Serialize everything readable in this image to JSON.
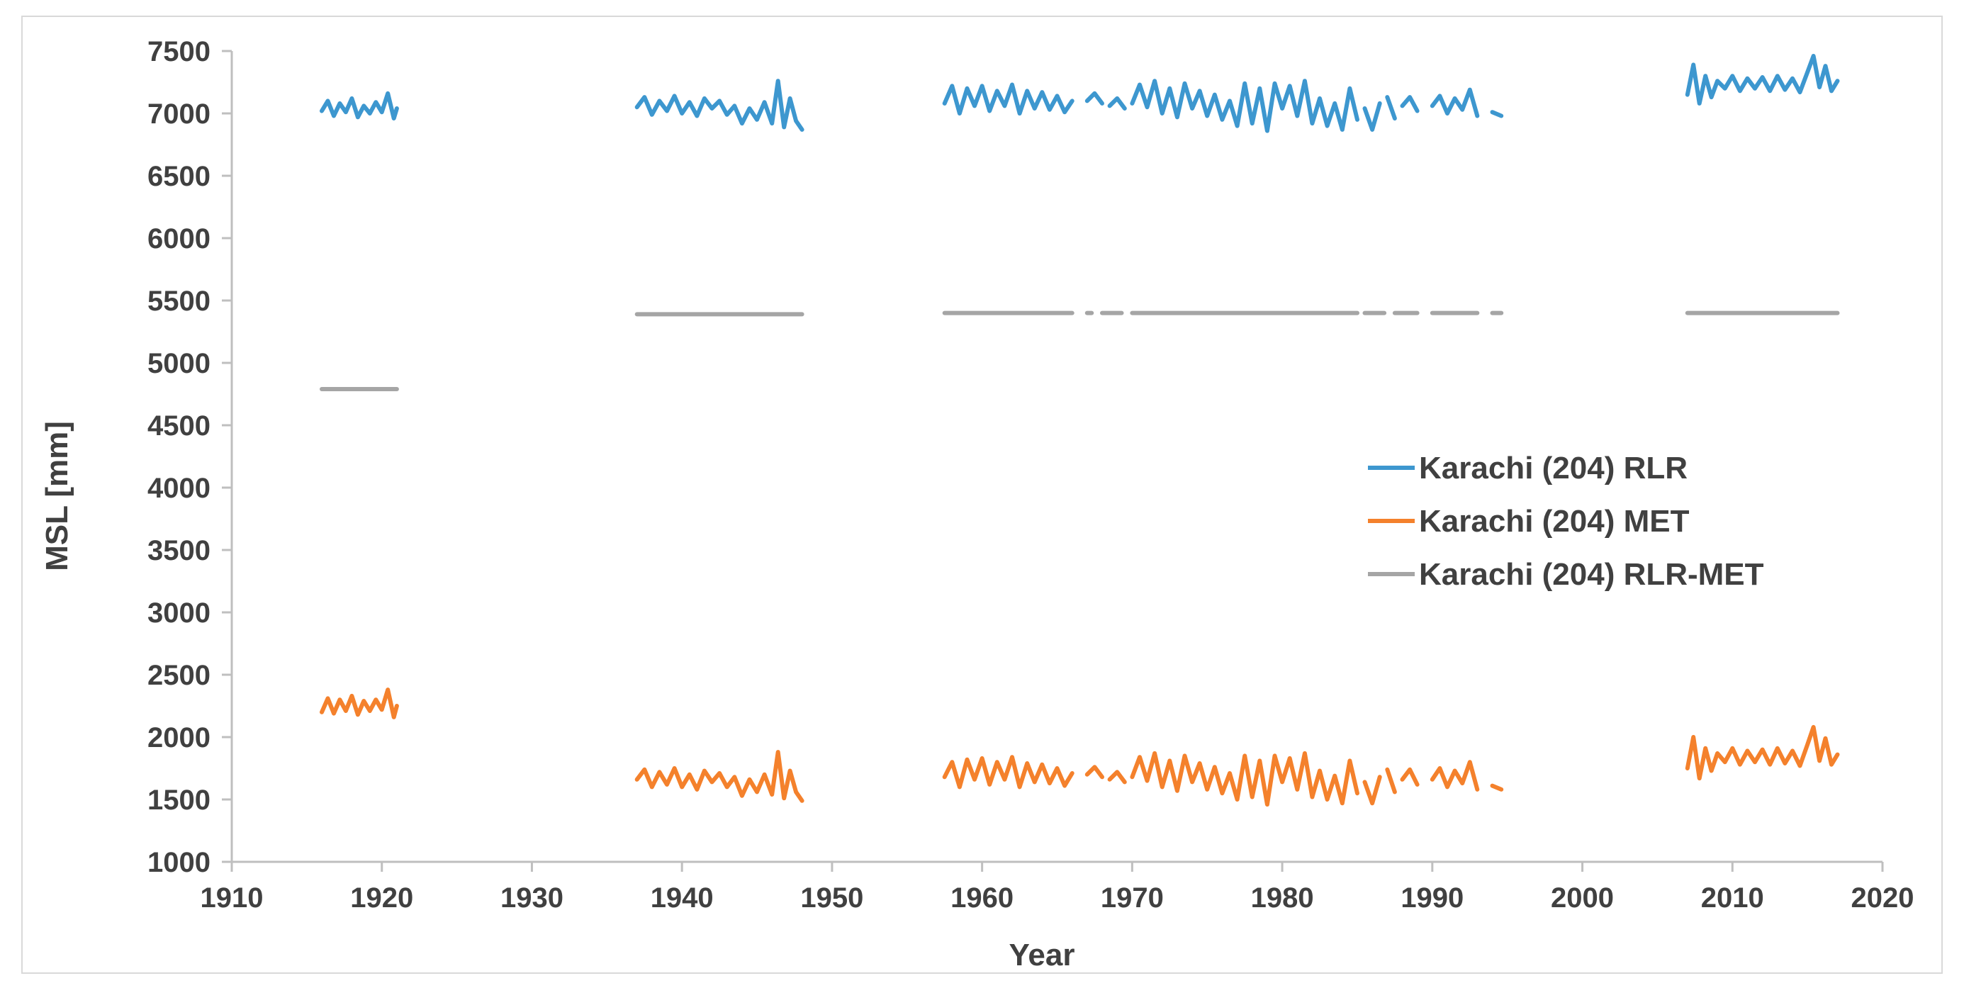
{
  "chart_data": {
    "type": "line",
    "xlabel": "Year",
    "ylabel": "MSL [mm]",
    "xlim": [
      1910,
      2020
    ],
    "ylim": [
      1000,
      7500
    ],
    "xticks": [
      1910,
      1920,
      1930,
      1940,
      1950,
      1960,
      1970,
      1980,
      1990,
      2000,
      2010,
      2020
    ],
    "yticks": [
      1000,
      1500,
      2000,
      2500,
      3000,
      3500,
      4000,
      4500,
      5000,
      5500,
      6000,
      6500,
      7000,
      7500
    ],
    "grid": false,
    "legend_position": "right",
    "series": [
      {
        "name": "Karachi (204) RLR",
        "color": "#3d97cf",
        "segments": [
          {
            "x": [
              1916.0,
              1916.4,
              1916.8,
              1917.2,
              1917.6,
              1918.0,
              1918.4,
              1918.8,
              1919.2,
              1919.6,
              1920.0,
              1920.4,
              1920.8,
              1921.0
            ],
            "y": [
              7020,
              7100,
              6980,
              7080,
              7010,
              7120,
              6970,
              7060,
              7000,
              7090,
              7010,
              7160,
              6960,
              7040
            ]
          },
          {
            "x": [
              1937.0,
              1937.5,
              1938.0,
              1938.5,
              1939.0,
              1939.5,
              1940.0,
              1940.5,
              1941.0,
              1941.5,
              1942.0,
              1942.5,
              1943.0,
              1943.5,
              1944.0,
              1944.5,
              1945.0,
              1945.5,
              1946.0,
              1946.4,
              1946.8,
              1947.2,
              1947.6,
              1948.0
            ],
            "y": [
              7050,
              7130,
              6990,
              7100,
              7020,
              7140,
              7000,
              7090,
              6980,
              7120,
              7040,
              7100,
              6990,
              7060,
              6920,
              7040,
              6950,
              7090,
              6920,
              7260,
              6890,
              7120,
              6940,
              6870
            ]
          },
          {
            "x": [
              1957.5,
              1958.0,
              1958.5,
              1959.0,
              1959.5,
              1960.0,
              1960.5,
              1961.0,
              1961.5,
              1962.0,
              1962.5,
              1963.0,
              1963.5,
              1964.0,
              1964.5,
              1965.0,
              1965.5,
              1966.0
            ],
            "y": [
              7080,
              7220,
              7000,
              7200,
              7060,
              7220,
              7020,
              7180,
              7060,
              7230,
              7000,
              7180,
              7040,
              7170,
              7030,
              7140,
              7010,
              7100
            ]
          },
          {
            "x": [
              1967.0,
              1967.5,
              1968.0
            ],
            "y": [
              7100,
              7160,
              7080
            ]
          },
          {
            "x": [
              1968.5,
              1969.0,
              1969.5
            ],
            "y": [
              7060,
              7120,
              7040
            ]
          },
          {
            "x": [
              1970.0,
              1970.5,
              1971.0,
              1971.5,
              1972.0,
              1972.5,
              1973.0,
              1973.5,
              1974.0,
              1974.5,
              1975.0,
              1975.5,
              1976.0,
              1976.5,
              1977.0,
              1977.5,
              1978.0,
              1978.5,
              1979.0,
              1979.5,
              1980.0,
              1980.5,
              1981.0,
              1981.5,
              1982.0,
              1982.5,
              1983.0,
              1983.5,
              1984.0,
              1984.5,
              1985.0
            ],
            "y": [
              7080,
              7230,
              7050,
              7260,
              7000,
              7200,
              6970,
              7240,
              7040,
              7180,
              6980,
              7150,
              6950,
              7100,
              6900,
              7240,
              6920,
              7200,
              6860,
              7240,
              7040,
              7220,
              6980,
              7260,
              6920,
              7120,
              6900,
              7080,
              6870,
              7200,
              6950
            ]
          },
          {
            "x": [
              1985.5,
              1986.0,
              1986.5
            ],
            "y": [
              7040,
              6870,
              7080
            ]
          },
          {
            "x": [
              1987.0,
              1987.5
            ],
            "y": [
              7130,
              6960
            ]
          },
          {
            "x": [
              1988.0,
              1988.5,
              1989.0
            ],
            "y": [
              7060,
              7130,
              7020
            ]
          },
          {
            "x": [
              1990.0,
              1990.5,
              1991.0,
              1991.5,
              1992.0,
              1992.5,
              1993.0
            ],
            "y": [
              7060,
              7140,
              7000,
              7120,
              7030,
              7190,
              6980
            ]
          },
          {
            "x": [
              1994.0,
              1994.6
            ],
            "y": [
              7010,
              6980
            ]
          },
          {
            "x": [
              2007.0,
              2007.4,
              2007.8,
              2008.2,
              2008.6,
              2009.0,
              2009.5,
              2010.0,
              2010.5,
              2011.0,
              2011.5,
              2012.0,
              2012.5,
              2013.0,
              2013.5,
              2014.0,
              2014.5,
              2015.0,
              2015.4,
              2015.8,
              2016.2,
              2016.6,
              2017.0
            ],
            "y": [
              7150,
              7390,
              7080,
              7300,
              7130,
              7260,
              7200,
              7300,
              7180,
              7280,
              7200,
              7290,
              7180,
              7300,
              7190,
              7280,
              7170,
              7330,
              7460,
              7210,
              7380,
              7180,
              7260
            ]
          }
        ]
      },
      {
        "name": "Karachi (204) MET",
        "color": "#f4812c",
        "segments": [
          {
            "x": [
              1916.0,
              1916.4,
              1916.8,
              1917.2,
              1917.6,
              1918.0,
              1918.4,
              1918.8,
              1919.2,
              1919.6,
              1920.0,
              1920.4,
              1920.8,
              1921.0
            ],
            "y": [
              2200,
              2310,
              2190,
              2300,
              2210,
              2330,
              2180,
              2290,
              2210,
              2300,
              2220,
              2380,
              2160,
              2250
            ]
          },
          {
            "x": [
              1937.0,
              1937.5,
              1938.0,
              1938.5,
              1939.0,
              1939.5,
              1940.0,
              1940.5,
              1941.0,
              1941.5,
              1942.0,
              1942.5,
              1943.0,
              1943.5,
              1944.0,
              1944.5,
              1945.0,
              1945.5,
              1946.0,
              1946.4,
              1946.8,
              1947.2,
              1947.6,
              1948.0
            ],
            "y": [
              1660,
              1740,
              1600,
              1720,
              1620,
              1750,
              1600,
              1700,
              1580,
              1730,
              1640,
              1710,
              1600,
              1680,
              1530,
              1660,
              1560,
              1700,
              1540,
              1880,
              1510,
              1730,
              1560,
              1490
            ]
          },
          {
            "x": [
              1957.5,
              1958.0,
              1958.5,
              1959.0,
              1959.5,
              1960.0,
              1960.5,
              1961.0,
              1961.5,
              1962.0,
              1962.5,
              1963.0,
              1963.5,
              1964.0,
              1964.5,
              1965.0,
              1965.5,
              1966.0
            ],
            "y": [
              1680,
              1800,
              1600,
              1820,
              1660,
              1830,
              1620,
              1800,
              1660,
              1840,
              1600,
              1790,
              1640,
              1780,
              1630,
              1750,
              1610,
              1710
            ]
          },
          {
            "x": [
              1967.0,
              1967.5,
              1968.0
            ],
            "y": [
              1700,
              1760,
              1680
            ]
          },
          {
            "x": [
              1968.5,
              1969.0,
              1969.5
            ],
            "y": [
              1660,
              1720,
              1640
            ]
          },
          {
            "x": [
              1970.0,
              1970.5,
              1971.0,
              1971.5,
              1972.0,
              1972.5,
              1973.0,
              1973.5,
              1974.0,
              1974.5,
              1975.0,
              1975.5,
              1976.0,
              1976.5,
              1977.0,
              1977.5,
              1978.0,
              1978.5,
              1979.0,
              1979.5,
              1980.0,
              1980.5,
              1981.0,
              1981.5,
              1982.0,
              1982.5,
              1983.0,
              1983.5,
              1984.0,
              1984.5,
              1985.0
            ],
            "y": [
              1680,
              1840,
              1650,
              1870,
              1600,
              1810,
              1570,
              1850,
              1640,
              1790,
              1580,
              1760,
              1550,
              1710,
              1500,
              1850,
              1520,
              1810,
              1460,
              1850,
              1640,
              1830,
              1580,
              1870,
              1520,
              1730,
              1500,
              1690,
              1470,
              1810,
              1550
            ]
          },
          {
            "x": [
              1985.5,
              1986.0,
              1986.5
            ],
            "y": [
              1640,
              1470,
              1680
            ]
          },
          {
            "x": [
              1987.0,
              1987.5
            ],
            "y": [
              1740,
              1560
            ]
          },
          {
            "x": [
              1988.0,
              1988.5,
              1989.0
            ],
            "y": [
              1660,
              1740,
              1620
            ]
          },
          {
            "x": [
              1990.0,
              1990.5,
              1991.0,
              1991.5,
              1992.0,
              1992.5,
              1993.0
            ],
            "y": [
              1660,
              1750,
              1600,
              1730,
              1630,
              1800,
              1580
            ]
          },
          {
            "x": [
              1994.0,
              1994.6
            ],
            "y": [
              1610,
              1580
            ]
          },
          {
            "x": [
              2007.0,
              2007.4,
              2007.8,
              2008.2,
              2008.6,
              2009.0,
              2009.5,
              2010.0,
              2010.5,
              2011.0,
              2011.5,
              2012.0,
              2012.5,
              2013.0,
              2013.5,
              2014.0,
              2014.5,
              2015.0,
              2015.4,
              2015.8,
              2016.2,
              2016.6,
              2017.0
            ],
            "y": [
              1750,
              2000,
              1670,
              1910,
              1730,
              1870,
              1800,
              1910,
              1780,
              1890,
              1800,
              1900,
              1780,
              1910,
              1790,
              1890,
              1770,
              1940,
              2080,
              1810,
              1990,
              1780,
              1860
            ]
          }
        ]
      },
      {
        "name": "Karachi (204) RLR-MET",
        "color": "#a5a5a5",
        "segments": [
          {
            "x": [
              1916.0,
              1921.0
            ],
            "y": [
              4790,
              4790
            ]
          },
          {
            "x": [
              1937.0,
              1948.0
            ],
            "y": [
              5390,
              5390
            ]
          },
          {
            "x": [
              1957.5,
              1966.0
            ],
            "y": [
              5400,
              5400
            ]
          },
          {
            "x": [
              1967.0,
              1967.3
            ],
            "y": [
              5400,
              5400
            ]
          },
          {
            "x": [
              1968.0,
              1969.3
            ],
            "y": [
              5400,
              5400
            ]
          },
          {
            "x": [
              1970.0,
              1985.0
            ],
            "y": [
              5400,
              5400
            ]
          },
          {
            "x": [
              1985.5,
              1986.8
            ],
            "y": [
              5400,
              5400
            ]
          },
          {
            "x": [
              1987.5,
              1989.0
            ],
            "y": [
              5400,
              5400
            ]
          },
          {
            "x": [
              1990.0,
              1993.0
            ],
            "y": [
              5400,
              5400
            ]
          },
          {
            "x": [
              1994.0,
              1994.6
            ],
            "y": [
              5400,
              5400
            ]
          },
          {
            "x": [
              2007.0,
              2017.0
            ],
            "y": [
              5400,
              5400
            ]
          }
        ]
      }
    ]
  }
}
